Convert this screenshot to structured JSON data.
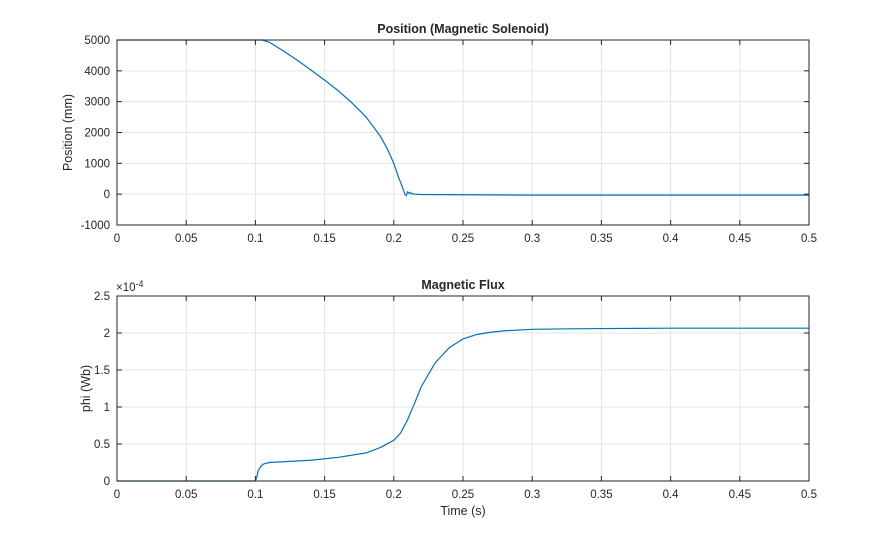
{
  "chart_data": [
    {
      "type": "line",
      "title": "Position (Magnetic Solenoid)",
      "xlabel": "",
      "ylabel": "Position (mm)",
      "xlim": [
        0,
        0.5
      ],
      "ylim": [
        -1000,
        5000
      ],
      "xticks": [
        "0",
        "0.05",
        "0.1",
        "0.15",
        "0.2",
        "0.25",
        "0.3",
        "0.35",
        "0.4",
        "0.45",
        "0.5"
      ],
      "yticks": [
        "5000",
        "4000",
        "3000",
        "2000",
        "1000",
        "0",
        "-1000"
      ],
      "grid": true,
      "series_color": "#0072BD",
      "series": [
        {
          "x": [
            0,
            0.05,
            0.1,
            0.105,
            0.11,
            0.12,
            0.13,
            0.14,
            0.15,
            0.16,
            0.17,
            0.18,
            0.19,
            0.195,
            0.2,
            0.203,
            0.206,
            0.208,
            0.209,
            0.21,
            0.211,
            0.212,
            0.213,
            0.214,
            0.215,
            0.22,
            0.25,
            0.3,
            0.35,
            0.4,
            0.45,
            0.5
          ],
          "y": [
            5000,
            5000,
            5000,
            5000,
            4930,
            4650,
            4350,
            4030,
            3700,
            3350,
            2950,
            2500,
            1900,
            1500,
            1000,
            600,
            250,
            0,
            -50,
            80,
            20,
            60,
            5,
            20,
            0,
            -10,
            -20,
            -30,
            -30,
            -30,
            -30,
            -30
          ]
        }
      ]
    },
    {
      "type": "line",
      "title": "Magnetic Flux",
      "xlabel": "Time (s)",
      "ylabel": "phi (Wb)",
      "y_multiplier": "×10",
      "y_exponent": "-4",
      "xlim": [
        0,
        0.5
      ],
      "ylim": [
        0,
        2.5
      ],
      "xticks": [
        "0",
        "0.05",
        "0.1",
        "0.15",
        "0.2",
        "0.25",
        "0.3",
        "0.35",
        "0.4",
        "0.45",
        "0.5"
      ],
      "yticks": [
        "2.5",
        "2",
        "1.5",
        "1",
        "0.5",
        "0"
      ],
      "grid": true,
      "series_color": "#0072BD",
      "series": [
        {
          "x": [
            0,
            0.05,
            0.1,
            0.101,
            0.102,
            0.104,
            0.106,
            0.11,
            0.12,
            0.14,
            0.16,
            0.18,
            0.19,
            0.2,
            0.205,
            0.21,
            0.215,
            0.22,
            0.23,
            0.24,
            0.25,
            0.26,
            0.27,
            0.28,
            0.29,
            0.3,
            0.32,
            0.35,
            0.4,
            0.45,
            0.5
          ],
          "y": [
            0,
            0,
            0,
            0.05,
            0.14,
            0.2,
            0.23,
            0.25,
            0.26,
            0.28,
            0.32,
            0.38,
            0.45,
            0.55,
            0.65,
            0.83,
            1.05,
            1.28,
            1.6,
            1.8,
            1.92,
            1.98,
            2.01,
            2.03,
            2.04,
            2.05,
            2.055,
            2.06,
            2.065,
            2.065,
            2.065
          ]
        }
      ]
    }
  ]
}
